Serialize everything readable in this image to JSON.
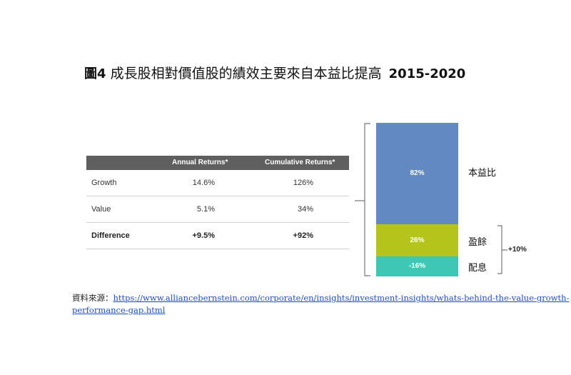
{
  "title": {
    "prefix": "圖4",
    "text": "成長股相對價值股的績效主要來自本益比提高",
    "years": "2015-2020"
  },
  "table": {
    "headers": [
      "",
      "Annual Returns*",
      "Cumulative Returns*"
    ],
    "rows": [
      {
        "label": "Growth",
        "annual": "14.6%",
        "cumulative": "126%",
        "bold": false
      },
      {
        "label": "Value",
        "annual": "5.1%",
        "cumulative": "34%",
        "bold": false
      },
      {
        "label": "Difference",
        "annual": "+9.5%",
        "cumulative": "+92%",
        "bold": true
      }
    ]
  },
  "chart_data": {
    "type": "bar",
    "stacked": true,
    "categories": [
      "本益比",
      "盈餘",
      "配息"
    ],
    "values": [
      82,
      26,
      -16
    ],
    "value_labels": [
      "82%",
      "26%",
      "-16%"
    ],
    "colors": [
      "#6389c2",
      "#b5c41a",
      "#3ec7b5"
    ],
    "group_annotation": "+10%"
  },
  "source": {
    "label": "資料來源：",
    "url_line1": "https://www.alliancebernstein.com/corporate/en/insights/investment-insights/whats-behind-the-value-growth-",
    "url_line2": "performance-gap.html"
  }
}
